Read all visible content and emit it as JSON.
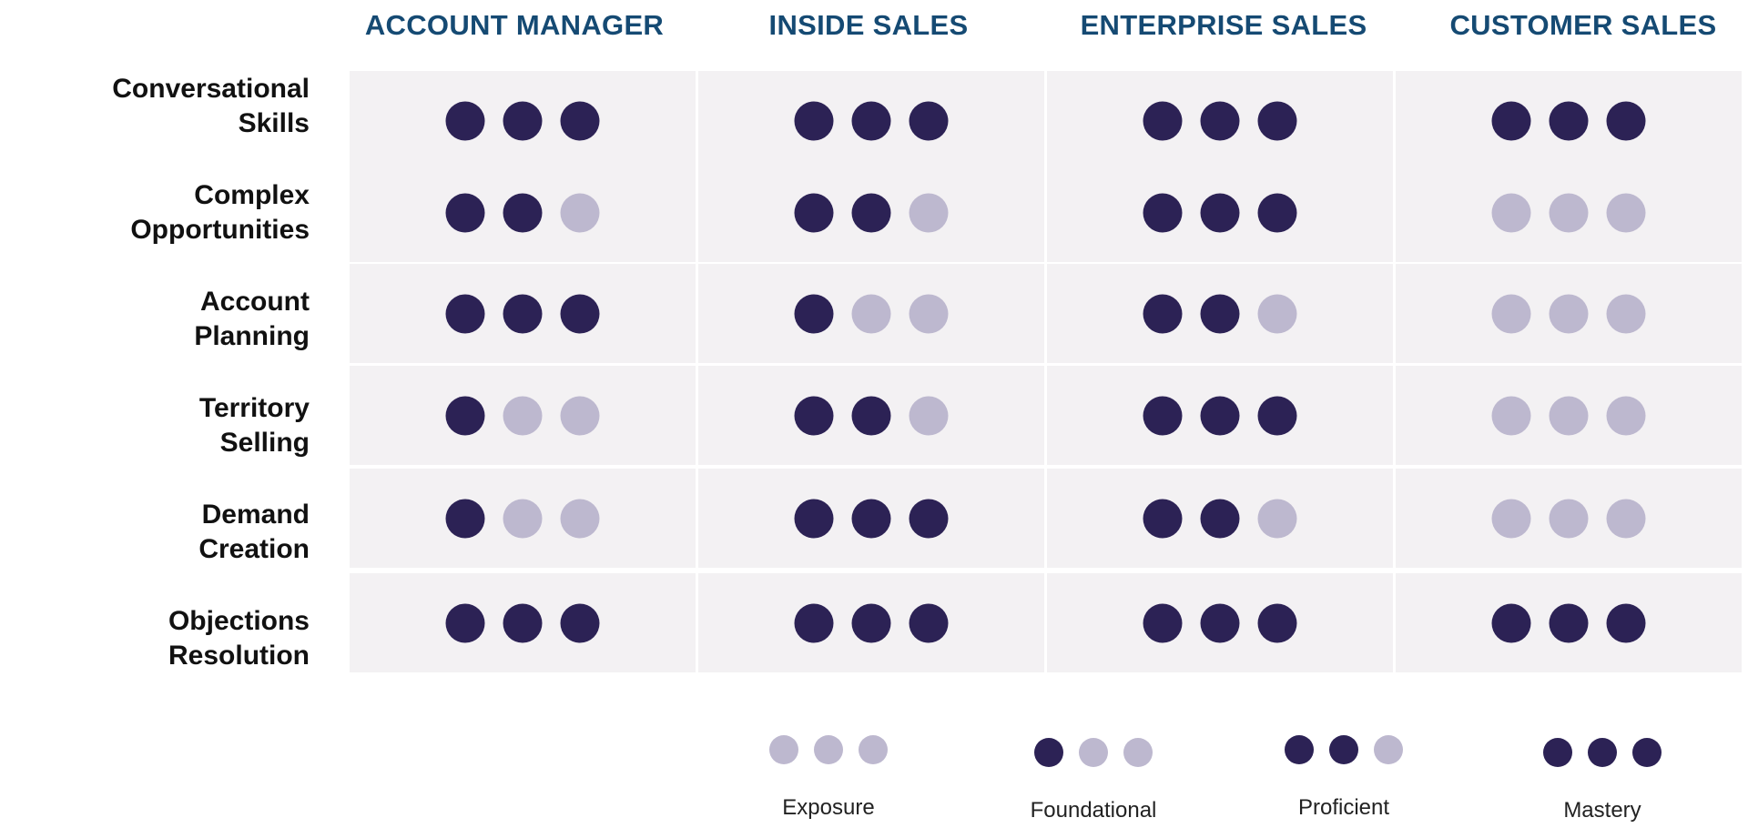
{
  "colors": {
    "filled": "#2c2255",
    "empty": "#bdb8cf",
    "header": "#154a73",
    "cell_bg": "#f3f1f3"
  },
  "columns": [
    "ACCOUNT MANAGER",
    "INSIDE SALES",
    "ENTERPRISE SALES",
    "CUSTOMER SALES"
  ],
  "rows": [
    {
      "label_lines": [
        "Conversational",
        "Skills"
      ],
      "levels": [
        3,
        3,
        3,
        3
      ]
    },
    {
      "label_lines": [
        "Complex",
        "Opportunities"
      ],
      "levels": [
        2,
        2,
        3,
        0
      ]
    },
    {
      "label_lines": [
        "Account",
        "Planning"
      ],
      "levels": [
        3,
        1,
        2,
        0
      ]
    },
    {
      "label_lines": [
        "Territory",
        "Selling"
      ],
      "levels": [
        1,
        2,
        3,
        0
      ]
    },
    {
      "label_lines": [
        "Demand",
        "Creation"
      ],
      "levels": [
        1,
        3,
        2,
        0
      ]
    },
    {
      "label_lines": [
        "Objections",
        "Resolution"
      ],
      "levels": [
        3,
        3,
        3,
        3
      ]
    }
  ],
  "max_level": 3,
  "legend": [
    {
      "label": "Exposure",
      "level": 0
    },
    {
      "label": "Foundational",
      "level": 1
    },
    {
      "label": "Proficient",
      "level": 2
    },
    {
      "label": "Mastery",
      "level": 3
    }
  ]
}
